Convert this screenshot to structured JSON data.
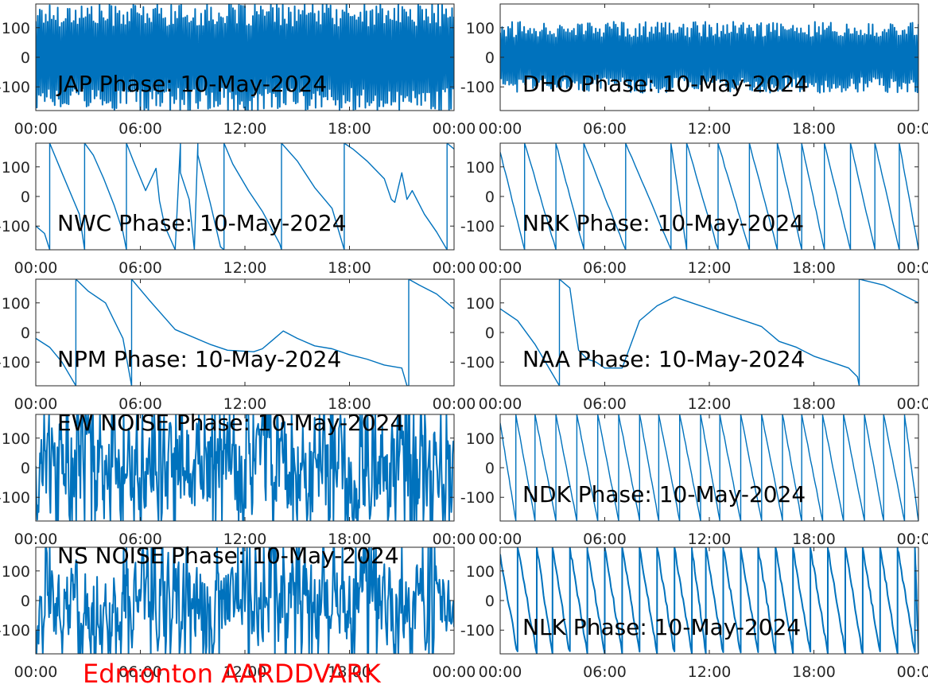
{
  "footer": {
    "text": "Edmonton AARDDVARK",
    "color": "#ff0000"
  },
  "line_color": "#0072bd",
  "chart_data": [
    {
      "type": "line",
      "title": "JAP Phase: 10-May-2024",
      "style": "wrap-dense",
      "amp": 185,
      "xticks": [
        "00:00",
        "06:00",
        "12:00",
        "18:00",
        "00:00"
      ],
      "xlim": [
        0,
        24
      ],
      "yticks": [
        "100",
        "0",
        "-100"
      ],
      "ylim": [
        -180,
        180
      ]
    },
    {
      "type": "line",
      "title": "DHO Phase: 10-May-2024",
      "style": "wrap-dense",
      "amp": 120,
      "xticks": [
        "00:00",
        "06:00",
        "12:00",
        "18:00",
        "00:00"
      ],
      "xlim": [
        0,
        24
      ],
      "yticks": [
        "100",
        "0",
        "-100"
      ],
      "ylim": [
        -180,
        180
      ]
    },
    {
      "type": "line",
      "title": "NWC Phase: 10-May-2024",
      "style": "points",
      "x": [
        0,
        0.5,
        0.8,
        0.8,
        1.5,
        2.5,
        2.8,
        2.8,
        3.3,
        3.9,
        4.5,
        5.0,
        5.2,
        5.2,
        5.6,
        6.3,
        6.9,
        7.1,
        7.4,
        8.0,
        8.3,
        8.3,
        8.8,
        9.1,
        9.3,
        9.3,
        10.0,
        10.6,
        10.8,
        10.8,
        11.3,
        12.2,
        13.0,
        14.0,
        14.1,
        14.1,
        15.0,
        16.0,
        17.0,
        17.7,
        17.7,
        18.2,
        19.0,
        20.0,
        20.4,
        20.6,
        21.0,
        21.3,
        21.6,
        22.3,
        23.0,
        23.6,
        23.6,
        24.0
      ],
      "y": [
        -100,
        -125,
        -180,
        180,
        80,
        -60,
        -180,
        180,
        140,
        60,
        -30,
        -120,
        -180,
        180,
        120,
        20,
        95,
        -15,
        -100,
        -180,
        180,
        80,
        -10,
        -180,
        180,
        140,
        -20,
        -170,
        -180,
        180,
        110,
        20,
        -50,
        -160,
        -180,
        180,
        120,
        30,
        -40,
        -180,
        180,
        160,
        120,
        60,
        -10,
        -20,
        80,
        -10,
        20,
        -60,
        -120,
        -180,
        180,
        160
      ],
      "xticks": [
        "00:00",
        "06:00",
        "12:00",
        "18:00",
        "00:00"
      ],
      "xlim": [
        0,
        24
      ],
      "yticks": [
        "100",
        "0",
        "-100"
      ],
      "ylim": [
        -180,
        180
      ]
    },
    {
      "type": "line",
      "title": "NRK Phase: 10-May-2024",
      "style": "sawtooth",
      "wraps": [
        1.4,
        3.2,
        4.8,
        7.2,
        9.8,
        10.7,
        12.5,
        14.3,
        15.9,
        17.3,
        18.6,
        20.1,
        21.5,
        22.9
      ],
      "xticks": [
        "00:00",
        "06:00",
        "12:00",
        "18:00",
        "00:00"
      ],
      "xlim": [
        0,
        24
      ],
      "yticks": [
        "100",
        "0",
        "-100"
      ],
      "ylim": [
        -180,
        180
      ]
    },
    {
      "type": "line",
      "title": "NPM Phase: 10-May-2024",
      "style": "points",
      "x": [
        0,
        0.8,
        1.5,
        2.3,
        2.3,
        3.0,
        4.0,
        5.0,
        5.5,
        5.5,
        6.5,
        8.0,
        10.0,
        11.0,
        12.5,
        13.0,
        13.5,
        14.2,
        15.0,
        16.0,
        17.0,
        18.0,
        19.0,
        20.0,
        21.0,
        21.3,
        21.4,
        21.4,
        22.0,
        23.0,
        24.0
      ],
      "y": [
        -20,
        -50,
        -100,
        -180,
        180,
        140,
        100,
        -20,
        -180,
        180,
        110,
        10,
        -40,
        -60,
        -65,
        -55,
        -30,
        5,
        -20,
        -45,
        -55,
        -75,
        -90,
        -110,
        -120,
        -180,
        -180,
        180,
        160,
        130,
        80
      ],
      "xticks": [
        "00:00",
        "06:00",
        "12:00",
        "18:00",
        "00:00"
      ],
      "xlim": [
        0,
        24
      ],
      "yticks": [
        "100",
        "0",
        "-100"
      ],
      "ylim": [
        -180,
        180
      ]
    },
    {
      "type": "line",
      "title": "NAA Phase: 10-May-2024",
      "style": "points",
      "x": [
        0,
        1.0,
        2.0,
        3.4,
        3.4,
        4.0,
        4.5,
        5.0,
        5.5,
        6.0,
        7.0,
        7.5,
        8.0,
        9.0,
        10.0,
        11.0,
        12.0,
        13.0,
        14.0,
        15.0,
        16.0,
        17.0,
        18.0,
        19.0,
        20.0,
        20.5,
        20.6,
        20.6,
        22.0,
        23.0,
        24.0
      ],
      "y": [
        80,
        40,
        -40,
        -180,
        180,
        150,
        -60,
        -90,
        -100,
        -120,
        -120,
        -40,
        40,
        90,
        120,
        100,
        80,
        60,
        40,
        20,
        -30,
        -50,
        -80,
        -100,
        -120,
        -150,
        -180,
        180,
        160,
        130,
        100
      ],
      "xticks": [
        "00:00",
        "06:00",
        "12:00",
        "18:00",
        "00:00"
      ],
      "xlim": [
        0,
        24
      ],
      "yticks": [
        "100",
        "0",
        "-100"
      ],
      "ylim": [
        -180,
        180
      ]
    },
    {
      "type": "line",
      "title": "EW NOISE Phase: 10-May-2024",
      "style": "noise",
      "amp": 185,
      "xticks": [
        "00:00",
        "06:00",
        "12:00",
        "18:00",
        "00:00"
      ],
      "xlim": [
        0,
        24
      ],
      "yticks": [
        "100",
        "0",
        "-100"
      ],
      "ylim": [
        -180,
        180
      ]
    },
    {
      "type": "line",
      "title": "NDK Phase: 10-May-2024",
      "style": "sawtooth",
      "wraps": [
        0.9,
        2.0,
        3.2,
        4.4,
        5.6,
        6.8,
        8.0,
        9.1,
        10.3,
        11.5,
        12.6,
        13.8,
        15.0,
        16.2,
        17.3,
        18.5,
        19.7,
        20.9,
        22.0,
        23.2
      ],
      "xticks": [
        "00:00",
        "06:00",
        "12:00",
        "18:00",
        "00:00"
      ],
      "xlim": [
        0,
        24
      ],
      "yticks": [
        "100",
        "0",
        "-100"
      ],
      "ylim": [
        -180,
        180
      ]
    },
    {
      "type": "line",
      "title": "NS NOISE Phase: 10-May-2024",
      "style": "noise",
      "amp": 150,
      "xticks": [
        "00:00",
        "06:00",
        "12:00",
        "18:00",
        "00:00"
      ],
      "xlim": [
        0,
        24
      ],
      "yticks": [
        "100",
        "0",
        "-100"
      ],
      "ylim": [
        -180,
        180
      ]
    },
    {
      "type": "line",
      "title": "NLK Phase: 10-May-2024",
      "style": "sawtooth-thick",
      "wraps": [
        1.0,
        2.1,
        3.0,
        4.0,
        5.0,
        6.0,
        7.0,
        8.0,
        9.0,
        10.0,
        11.0,
        11.8,
        12.8,
        13.8,
        14.8,
        15.8,
        16.8,
        17.8,
        18.8,
        19.8,
        20.8,
        21.8,
        22.8,
        23.8
      ],
      "xticks": [
        "00:00",
        "06:00",
        "12:00",
        "18:00",
        "00:00"
      ],
      "xlim": [
        0,
        24
      ],
      "yticks": [
        "100",
        "0",
        "-100"
      ],
      "ylim": [
        -180,
        180
      ]
    }
  ]
}
